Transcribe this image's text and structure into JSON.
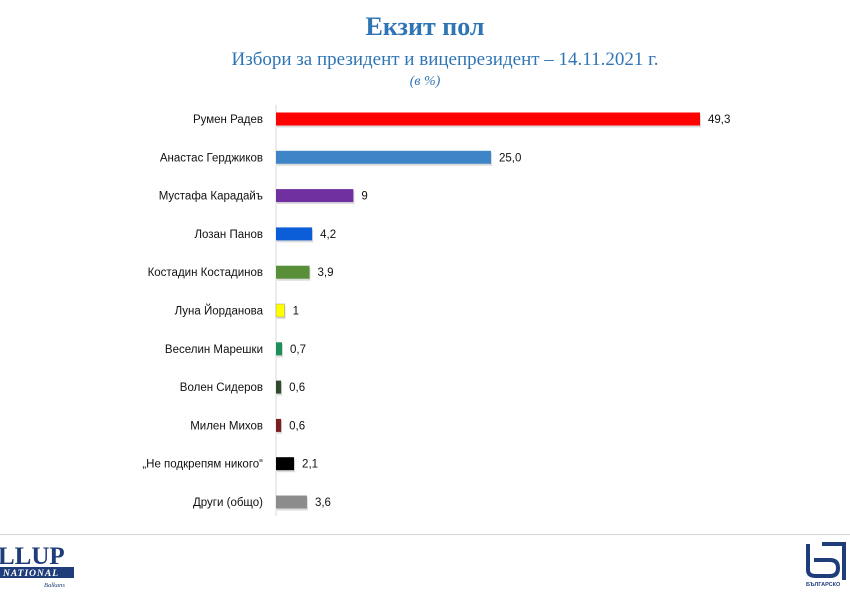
{
  "header": {
    "title": "Екзит пол",
    "subtitle": "Избори за президент и вицепрезидент – 14.11.2021 г.",
    "unit": "(в %)"
  },
  "chart_data": {
    "type": "bar",
    "orientation": "horizontal",
    "title": "Екзит пол",
    "subtitle": "Избори за президент и вицепрезидент – 14.11.2021 г.",
    "unit": "(в %)",
    "categories": [
      "Румен Радев",
      "Анастас Герджиков",
      "Мустафа Карадайъ",
      "Лозан Панов",
      "Костадин Костадинов",
      "Луна Йорданова",
      "Веселин Марешки",
      "Волен Сидеров",
      "Милен Михов",
      "„Не подкрепям никого“",
      "Други (общо)"
    ],
    "values": [
      49.3,
      25.0,
      9,
      4.2,
      3.9,
      1,
      0.7,
      0.6,
      0.6,
      2.1,
      3.6
    ],
    "value_labels": [
      "49,3",
      "25,0",
      "9",
      "4,2",
      "3,9",
      "1",
      "0,7",
      "0,6",
      "0,6",
      "2,1",
      "3,6"
    ],
    "colors": [
      "#ff0000",
      "#3d85c6",
      "#7030a0",
      "#0b5ed7",
      "#5a8f3a",
      "#ffff00",
      "#1e8e5a",
      "#2f4a2f",
      "#7a1f1f",
      "#000000",
      "#8c8c8c"
    ],
    "xlim": [
      0,
      50
    ],
    "grid": false,
    "legend": "none"
  },
  "logos": {
    "left": {
      "line1": "LLUP",
      "line2": "NATIONAL",
      "line3": "Balkans"
    },
    "right": {
      "caption": "БЪЛГАРСКО"
    }
  }
}
